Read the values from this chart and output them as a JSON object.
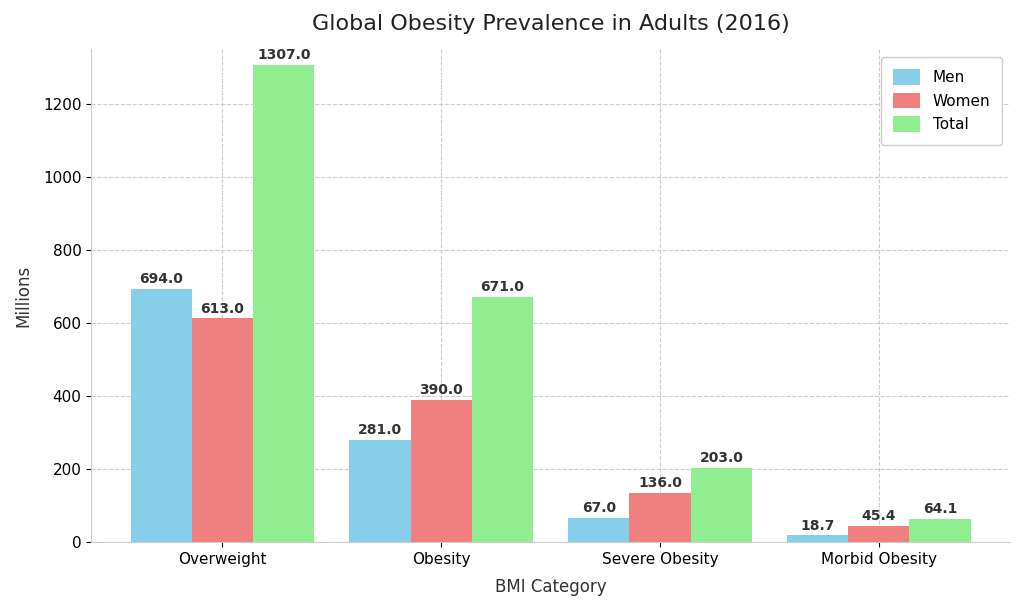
{
  "title": "Global Obesity Prevalence in Adults (2016)",
  "xlabel": "BMI Category",
  "ylabel": "Millions",
  "categories": [
    "Overweight",
    "Obesity",
    "Severe Obesity",
    "Morbid Obesity"
  ],
  "series": {
    "Men": [
      694.0,
      281.0,
      67.0,
      18.7
    ],
    "Women": [
      613.0,
      390.0,
      136.0,
      45.4
    ],
    "Total": [
      1307.0,
      671.0,
      203.0,
      64.1
    ]
  },
  "colors": {
    "Men": "#87CEEB",
    "Women": "#F08080",
    "Total": "#90EE90"
  },
  "legend_labels": [
    "Men",
    "Women",
    "Total"
  ],
  "ylim": [
    0,
    1350
  ],
  "yticks": [
    0,
    200,
    400,
    600,
    800,
    1000,
    1200
  ],
  "bar_width": 0.28,
  "background_color": "#FFFFFF",
  "grid_color": "#CCCCCC",
  "title_fontsize": 16,
  "label_fontsize": 12,
  "tick_fontsize": 11,
  "annotation_fontsize": 10,
  "legend_fontsize": 11
}
